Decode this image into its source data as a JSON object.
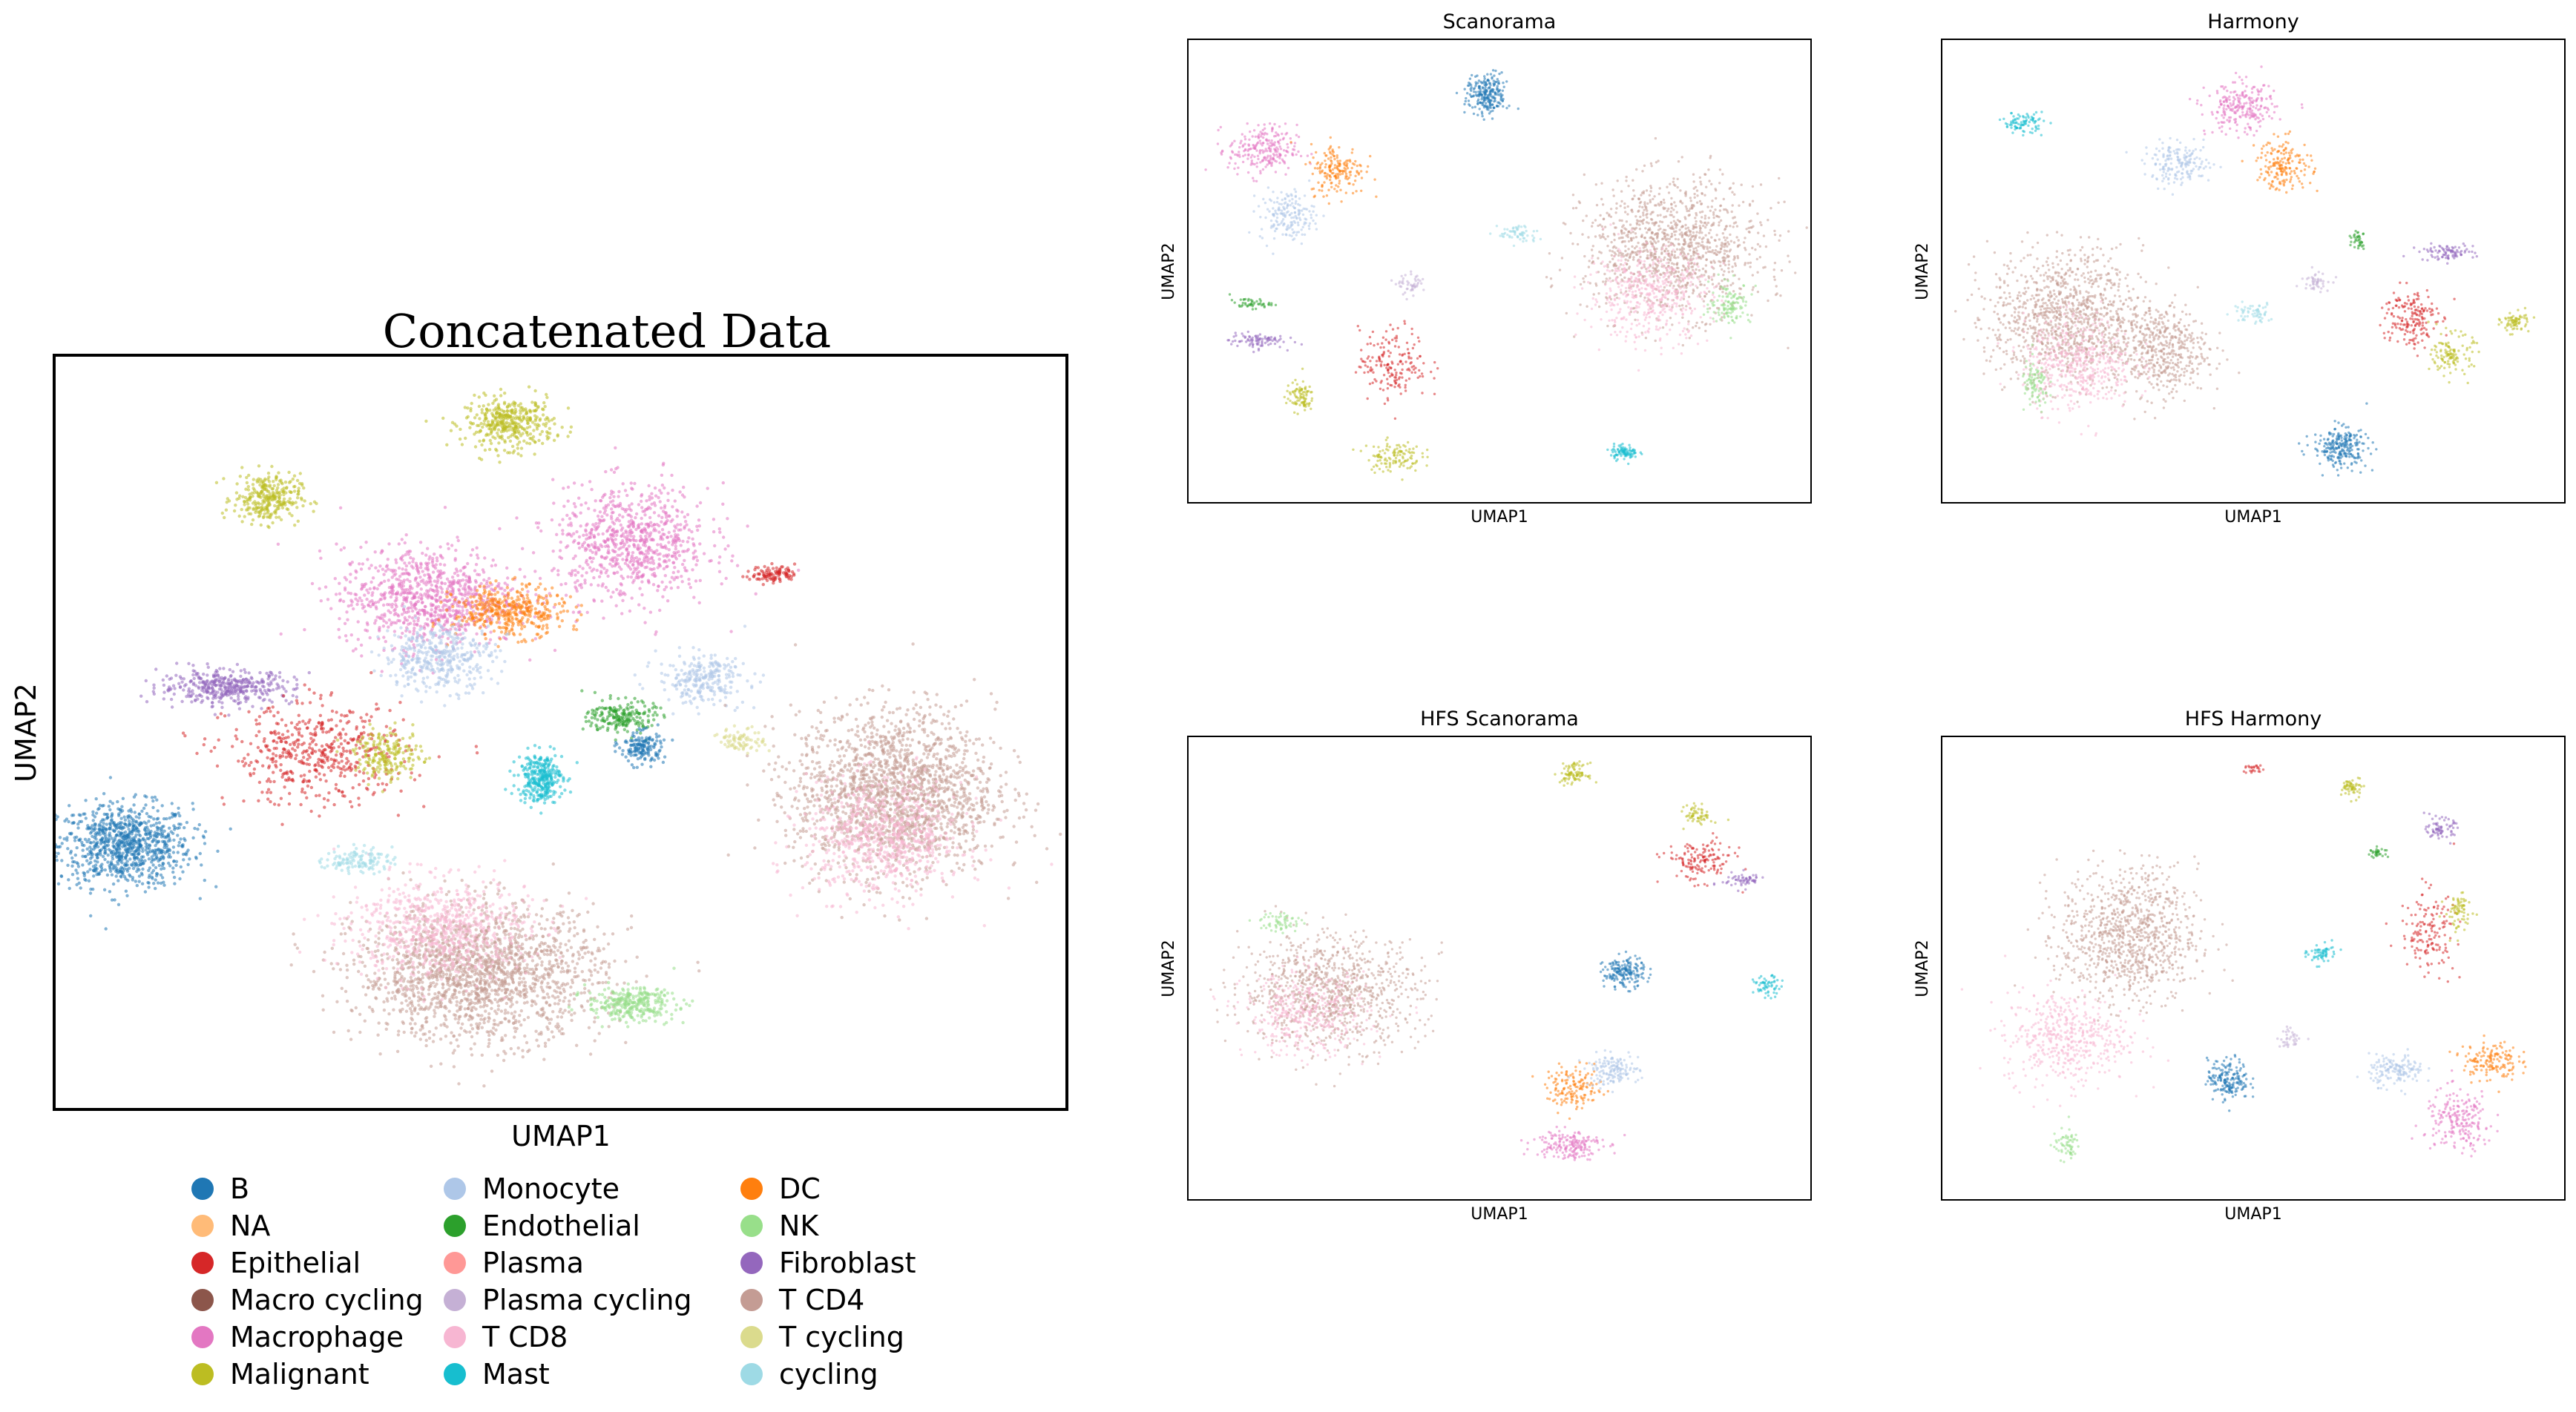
{
  "figure": {
    "main_title": "Concatenated Data",
    "legend_title": ""
  },
  "legend": [
    {
      "label": "B",
      "color": "#1f77b4"
    },
    {
      "label": "NA",
      "color": "#ffbb78"
    },
    {
      "label": "Epithelial",
      "color": "#d62728"
    },
    {
      "label": "Macro cycling",
      "color": "#8c564b"
    },
    {
      "label": "Macrophage",
      "color": "#e377c2"
    },
    {
      "label": "Malignant",
      "color": "#bcbd22"
    },
    {
      "label": "Monocyte",
      "color": "#aec7e8"
    },
    {
      "label": "Endothelial",
      "color": "#2ca02c"
    },
    {
      "label": "Plasma",
      "color": "#ff9896"
    },
    {
      "label": "Plasma cycling",
      "color": "#c5b0d5"
    },
    {
      "label": "T CD8",
      "color": "#f7b6d2"
    },
    {
      "label": "Mast",
      "color": "#17becf"
    },
    {
      "label": "DC",
      "color": "#ff7f0e"
    },
    {
      "label": "NK",
      "color": "#98df8a"
    },
    {
      "label": "Fibroblast",
      "color": "#9467bd"
    },
    {
      "label": "T CD4",
      "color": "#c49c94"
    },
    {
      "label": "T cycling",
      "color": "#dbdb8d"
    },
    {
      "label": "cycling",
      "color": "#9edae5"
    }
  ],
  "chart_data": [
    {
      "type": "scatter",
      "title": "Concatenated Data",
      "xlabel": "UMAP1",
      "ylabel": "UMAP2",
      "xlim": [
        0,
        100
      ],
      "ylim": [
        0,
        100
      ],
      "ticks": "none",
      "clusters": [
        {
          "category": "B",
          "x": 7,
          "y": 35,
          "sx": 6,
          "sy": 5,
          "n": 900
        },
        {
          "category": "Malignant",
          "x": 45,
          "y": 91,
          "sx": 4,
          "sy": 3,
          "n": 400
        },
        {
          "category": "Malignant",
          "x": 21,
          "y": 81,
          "sx": 3,
          "sy": 3,
          "n": 300
        },
        {
          "category": "Macrophage",
          "x": 37,
          "y": 68,
          "sx": 8,
          "sy": 6,
          "n": 900
        },
        {
          "category": "Macrophage",
          "x": 57,
          "y": 75,
          "sx": 7,
          "sy": 7,
          "n": 800
        },
        {
          "category": "DC",
          "x": 45,
          "y": 66,
          "sx": 5,
          "sy": 3,
          "n": 400
        },
        {
          "category": "Monocyte",
          "x": 38,
          "y": 60,
          "sx": 5,
          "sy": 4,
          "n": 400
        },
        {
          "category": "Fibroblast",
          "x": 17,
          "y": 56,
          "sx": 6,
          "sy": 2,
          "n": 400
        },
        {
          "category": "Epithelial",
          "x": 26,
          "y": 47,
          "sx": 8,
          "sy": 6,
          "n": 500
        },
        {
          "category": "Malignant",
          "x": 33,
          "y": 47,
          "sx": 3,
          "sy": 3,
          "n": 200
        },
        {
          "category": "Mast",
          "x": 48,
          "y": 44,
          "sx": 2,
          "sy": 3,
          "n": 300
        },
        {
          "category": "Endothelial",
          "x": 56,
          "y": 52,
          "sx": 3,
          "sy": 2,
          "n": 200
        },
        {
          "category": "B",
          "x": 58,
          "y": 48,
          "sx": 2,
          "sy": 2,
          "n": 150
        },
        {
          "category": "Monocyte",
          "x": 64,
          "y": 57,
          "sx": 4,
          "sy": 3,
          "n": 250
        },
        {
          "category": "T CD4",
          "x": 83,
          "y": 42,
          "sx": 9,
          "sy": 10,
          "n": 1800
        },
        {
          "category": "T CD8",
          "x": 82,
          "y": 36,
          "sx": 7,
          "sy": 7,
          "n": 700
        },
        {
          "category": "T CD4",
          "x": 42,
          "y": 18,
          "sx": 11,
          "sy": 8,
          "n": 1800
        },
        {
          "category": "T CD8",
          "x": 38,
          "y": 24,
          "sx": 8,
          "sy": 6,
          "n": 700
        },
        {
          "category": "NK",
          "x": 57,
          "y": 14,
          "sx": 4,
          "sy": 2,
          "n": 300
        },
        {
          "category": "cycling",
          "x": 30,
          "y": 33,
          "sx": 3,
          "sy": 1.5,
          "n": 120
        },
        {
          "category": "Epithelial",
          "x": 71,
          "y": 71,
          "sx": 2,
          "sy": 1,
          "n": 100
        },
        {
          "category": "T cycling",
          "x": 68,
          "y": 49,
          "sx": 2,
          "sy": 1.5,
          "n": 80
        }
      ]
    },
    {
      "type": "scatter",
      "title": "Scanorama",
      "xlabel": "UMAP1",
      "ylabel": "UMAP2",
      "xlim": [
        0,
        100
      ],
      "ylim": [
        0,
        100
      ],
      "ticks": "none",
      "clusters": [
        {
          "category": "B",
          "x": 48,
          "y": 88,
          "sx": 3,
          "sy": 4,
          "n": 400
        },
        {
          "category": "Macrophage",
          "x": 12,
          "y": 76,
          "sx": 5,
          "sy": 5,
          "n": 400
        },
        {
          "category": "DC",
          "x": 24,
          "y": 72,
          "sx": 4,
          "sy": 5,
          "n": 300
        },
        {
          "category": "Monocyte",
          "x": 16,
          "y": 62,
          "sx": 4,
          "sy": 5,
          "n": 300
        },
        {
          "category": "Endothelial",
          "x": 10,
          "y": 43,
          "sx": 3,
          "sy": 1,
          "n": 80
        },
        {
          "category": "Fibroblast",
          "x": 11,
          "y": 35,
          "sx": 4,
          "sy": 1.5,
          "n": 150
        },
        {
          "category": "Malignant",
          "x": 18,
          "y": 23,
          "sx": 2,
          "sy": 3,
          "n": 150
        },
        {
          "category": "Epithelial",
          "x": 33,
          "y": 30,
          "sx": 5,
          "sy": 7,
          "n": 300
        },
        {
          "category": "Malignant",
          "x": 33,
          "y": 10,
          "sx": 4,
          "sy": 3,
          "n": 200
        },
        {
          "category": "Mast",
          "x": 70,
          "y": 11,
          "sx": 2,
          "sy": 1.5,
          "n": 150
        },
        {
          "category": "T CD4",
          "x": 78,
          "y": 55,
          "sx": 13,
          "sy": 13,
          "n": 2000
        },
        {
          "category": "T CD8",
          "x": 74,
          "y": 45,
          "sx": 9,
          "sy": 9,
          "n": 800
        },
        {
          "category": "NK",
          "x": 87,
          "y": 43,
          "sx": 3,
          "sy": 4,
          "n": 200
        },
        {
          "category": "cycling",
          "x": 53,
          "y": 58,
          "sx": 3,
          "sy": 2,
          "n": 100
        },
        {
          "category": "Plasma cycling",
          "x": 36,
          "y": 47,
          "sx": 2,
          "sy": 2,
          "n": 80
        }
      ]
    },
    {
      "type": "scatter",
      "title": "Harmony",
      "xlabel": "UMAP1",
      "ylabel": "UMAP2",
      "xlim": [
        0,
        100
      ],
      "ylim": [
        0,
        100
      ],
      "ticks": "none",
      "clusters": [
        {
          "category": "Mast",
          "x": 13,
          "y": 82,
          "sx": 3,
          "sy": 2,
          "n": 150
        },
        {
          "category": "Macrophage",
          "x": 48,
          "y": 85,
          "sx": 5,
          "sy": 5,
          "n": 400
        },
        {
          "category": "DC",
          "x": 55,
          "y": 73,
          "sx": 4,
          "sy": 5,
          "n": 300
        },
        {
          "category": "Monocyte",
          "x": 38,
          "y": 73,
          "sx": 5,
          "sy": 4,
          "n": 300
        },
        {
          "category": "Fibroblast",
          "x": 81,
          "y": 54,
          "sx": 4,
          "sy": 1.5,
          "n": 150
        },
        {
          "category": "Endothelial",
          "x": 67,
          "y": 57,
          "sx": 1,
          "sy": 2,
          "n": 60
        },
        {
          "category": "Epithelial",
          "x": 75,
          "y": 40,
          "sx": 4,
          "sy": 6,
          "n": 300
        },
        {
          "category": "Malignant",
          "x": 82,
          "y": 32,
          "sx": 3,
          "sy": 4,
          "n": 200
        },
        {
          "category": "Malignant",
          "x": 92,
          "y": 39,
          "sx": 2,
          "sy": 2,
          "n": 120
        },
        {
          "category": "B",
          "x": 64,
          "y": 12,
          "sx": 4,
          "sy": 4,
          "n": 400
        },
        {
          "category": "T CD4",
          "x": 20,
          "y": 40,
          "sx": 11,
          "sy": 13,
          "n": 1800
        },
        {
          "category": "T CD4",
          "x": 35,
          "y": 33,
          "sx": 7,
          "sy": 9,
          "n": 800
        },
        {
          "category": "T CD8",
          "x": 22,
          "y": 30,
          "sx": 8,
          "sy": 9,
          "n": 800
        },
        {
          "category": "NK",
          "x": 15,
          "y": 25,
          "sx": 2,
          "sy": 5,
          "n": 150
        },
        {
          "category": "cycling",
          "x": 50,
          "y": 41,
          "sx": 3,
          "sy": 2,
          "n": 100
        },
        {
          "category": "Plasma cycling",
          "x": 60,
          "y": 48,
          "sx": 2,
          "sy": 2,
          "n": 80
        }
      ]
    },
    {
      "type": "scatter",
      "title": "HFS Scanorama",
      "xlabel": "UMAP1",
      "ylabel": "UMAP2",
      "xlim": [
        0,
        100
      ],
      "ylim": [
        0,
        100
      ],
      "ticks": "none",
      "clusters": [
        {
          "category": "Malignant",
          "x": 62,
          "y": 92,
          "sx": 2,
          "sy": 2,
          "n": 150
        },
        {
          "category": "Epithelial",
          "x": 82,
          "y": 73,
          "sx": 5,
          "sy": 4,
          "n": 250
        },
        {
          "category": "Malignant",
          "x": 82,
          "y": 83,
          "sx": 2,
          "sy": 2,
          "n": 100
        },
        {
          "category": "Fibroblast",
          "x": 89,
          "y": 69,
          "sx": 3,
          "sy": 1.5,
          "n": 100
        },
        {
          "category": "B",
          "x": 70,
          "y": 49,
          "sx": 3,
          "sy": 3,
          "n": 300
        },
        {
          "category": "Mast",
          "x": 93,
          "y": 46,
          "sx": 2,
          "sy": 2,
          "n": 100
        },
        {
          "category": "T CD4",
          "x": 23,
          "y": 45,
          "sx": 13,
          "sy": 11,
          "n": 1600
        },
        {
          "category": "T CD8",
          "x": 19,
          "y": 40,
          "sx": 9,
          "sy": 8,
          "n": 700
        },
        {
          "category": "NK",
          "x": 15,
          "y": 60,
          "sx": 3,
          "sy": 2,
          "n": 100
        },
        {
          "category": "DC",
          "x": 62,
          "y": 24,
          "sx": 4,
          "sy": 4,
          "n": 250
        },
        {
          "category": "Monocyte",
          "x": 68,
          "y": 28,
          "sx": 4,
          "sy": 3,
          "n": 250
        },
        {
          "category": "Macrophage",
          "x": 61,
          "y": 12,
          "sx": 5,
          "sy": 3,
          "n": 300
        }
      ]
    },
    {
      "type": "scatter",
      "title": "HFS Harmony",
      "xlabel": "UMAP1",
      "ylabel": "UMAP2",
      "xlim": [
        0,
        100
      ],
      "ylim": [
        0,
        100
      ],
      "ticks": "none",
      "clusters": [
        {
          "category": "Epithelial",
          "x": 50,
          "y": 93,
          "sx": 1.5,
          "sy": 1,
          "n": 40
        },
        {
          "category": "Malignant",
          "x": 66,
          "y": 89,
          "sx": 1.5,
          "sy": 2,
          "n": 100
        },
        {
          "category": "Fibroblast",
          "x": 80,
          "y": 80,
          "sx": 2,
          "sy": 2,
          "n": 120
        },
        {
          "category": "Endothelial",
          "x": 70,
          "y": 75,
          "sx": 1.5,
          "sy": 1,
          "n": 50
        },
        {
          "category": "Mast",
          "x": 61,
          "y": 53,
          "sx": 2,
          "sy": 2,
          "n": 100
        },
        {
          "category": "Epithelial",
          "x": 78,
          "y": 58,
          "sx": 4,
          "sy": 8,
          "n": 250
        },
        {
          "category": "Malignant",
          "x": 83,
          "y": 62,
          "sx": 2,
          "sy": 4,
          "n": 120
        },
        {
          "category": "T CD4",
          "x": 30,
          "y": 57,
          "sx": 10,
          "sy": 13,
          "n": 1600
        },
        {
          "category": "T CD8",
          "x": 20,
          "y": 35,
          "sx": 9,
          "sy": 9,
          "n": 800
        },
        {
          "category": "NK",
          "x": 20,
          "y": 12,
          "sx": 2,
          "sy": 3,
          "n": 100
        },
        {
          "category": "B",
          "x": 46,
          "y": 26,
          "sx": 3,
          "sy": 4,
          "n": 300
        },
        {
          "category": "Plasma cycling",
          "x": 56,
          "y": 35,
          "sx": 2,
          "sy": 2,
          "n": 60
        },
        {
          "category": "DC",
          "x": 88,
          "y": 30,
          "sx": 4,
          "sy": 4,
          "n": 250
        },
        {
          "category": "Monocyte",
          "x": 73,
          "y": 28,
          "sx": 4,
          "sy": 3,
          "n": 250
        },
        {
          "category": "Macrophage",
          "x": 83,
          "y": 17,
          "sx": 5,
          "sy": 6,
          "n": 350
        }
      ]
    }
  ]
}
